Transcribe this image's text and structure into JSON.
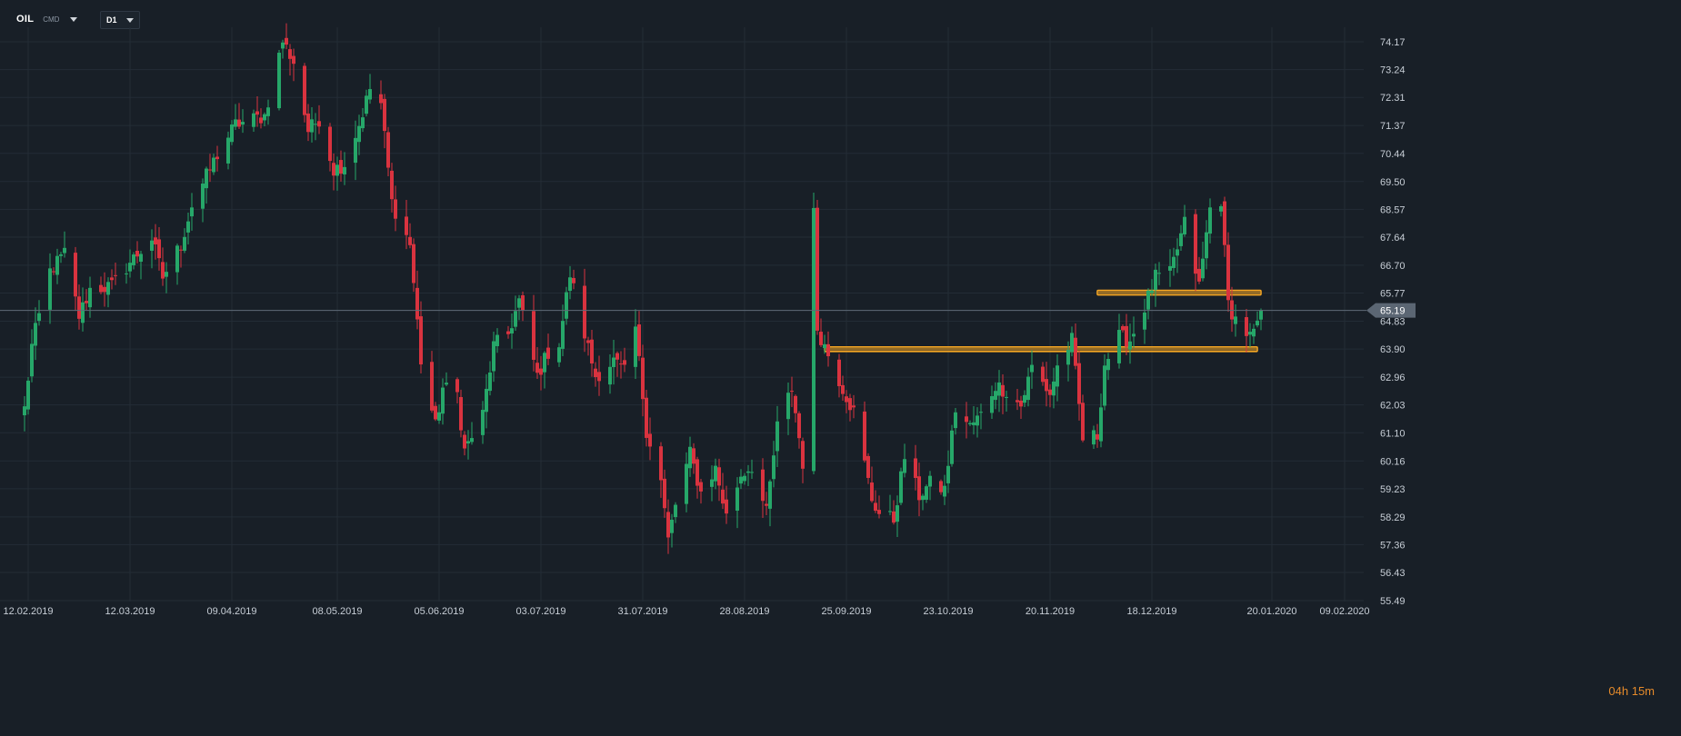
{
  "header": {
    "symbol": "OIL",
    "symbol_type": "CMD",
    "timeframe": "D1"
  },
  "countdown": "04h 15m",
  "colors": {
    "background": "#181f27",
    "grid": "#232c36",
    "bull": "#26a769",
    "bear": "#d9333f",
    "level": "#f5a623",
    "price_line": "#5f6b78",
    "price_tag": "#5b6673",
    "axis_text": "#c7ced6"
  },
  "chart_data": {
    "type": "candlestick",
    "title": "",
    "xlabel": "",
    "ylabel": "",
    "ylim": [
      55.2,
      75.0
    ],
    "grid": true,
    "y_ticks": [
      74.17,
      73.24,
      72.31,
      71.37,
      70.44,
      69.5,
      68.57,
      67.64,
      66.7,
      65.77,
      64.83,
      63.9,
      62.96,
      62.03,
      61.1,
      60.16,
      59.23,
      58.29,
      57.36,
      56.43,
      55.49
    ],
    "x_ticks": [
      "12.02.2019",
      "12.03.2019",
      "09.04.2019",
      "08.05.2019",
      "05.06.2019",
      "03.07.2019",
      "31.07.2019",
      "28.08.2019",
      "25.09.2019",
      "23.10.2019",
      "20.11.2019",
      "18.12.2019",
      "20.01.2020",
      "09.02.2020"
    ],
    "current_price": "65.19",
    "horizontal_levels": [
      {
        "price": 65.77,
        "start": "2019-12-03",
        "end": "2020-01-17"
      },
      {
        "price": 63.88,
        "start": "2019-09-19",
        "end": "2020-01-16"
      }
    ],
    "anchors": [
      [
        "2019-02-11",
        61.9
      ],
      [
        "2019-02-13",
        64.0
      ],
      [
        "2019-02-18",
        66.5
      ],
      [
        "2019-02-22",
        67.1
      ],
      [
        "2019-02-26",
        65.0
      ],
      [
        "2019-03-01",
        65.9
      ],
      [
        "2019-03-07",
        66.0
      ],
      [
        "2019-03-12",
        66.8
      ],
      [
        "2019-03-18",
        67.6
      ],
      [
        "2019-03-21",
        66.3
      ],
      [
        "2019-03-26",
        67.4
      ],
      [
        "2019-03-29",
        68.7
      ],
      [
        "2019-04-05",
        70.4
      ],
      [
        "2019-04-10",
        71.4
      ],
      [
        "2019-04-18",
        71.7
      ],
      [
        "2019-04-23",
        74.2
      ],
      [
        "2019-04-26",
        73.5
      ],
      [
        "2019-04-30",
        71.2
      ],
      [
        "2019-05-03",
        71.6
      ],
      [
        "2019-05-07",
        69.9
      ],
      [
        "2019-05-10",
        70.1
      ],
      [
        "2019-05-14",
        71.4
      ],
      [
        "2019-05-17",
        72.6
      ],
      [
        "2019-05-20",
        72.1
      ],
      [
        "2019-05-23",
        68.8
      ],
      [
        "2019-05-28",
        67.4
      ],
      [
        "2019-05-31",
        63.5
      ],
      [
        "2019-06-04",
        61.3
      ],
      [
        "2019-06-06",
        62.6
      ],
      [
        "2019-06-10",
        62.4
      ],
      [
        "2019-06-12",
        60.5
      ],
      [
        "2019-06-17",
        61.7
      ],
      [
        "2019-06-20",
        64.0
      ],
      [
        "2019-06-24",
        64.4
      ],
      [
        "2019-06-27",
        65.5
      ],
      [
        "2019-07-02",
        63.0
      ],
      [
        "2019-07-05",
        63.8
      ],
      [
        "2019-07-08",
        64.1
      ],
      [
        "2019-07-11",
        66.4
      ],
      [
        "2019-07-15",
        64.4
      ],
      [
        "2019-07-18",
        63.0
      ],
      [
        "2019-07-23",
        63.5
      ],
      [
        "2019-07-26",
        63.1
      ],
      [
        "2019-07-29",
        64.6
      ],
      [
        "2019-08-01",
        61.2
      ],
      [
        "2019-08-05",
        59.5
      ],
      [
        "2019-08-07",
        57.5
      ],
      [
        "2019-08-09",
        58.7
      ],
      [
        "2019-08-13",
        60.4
      ],
      [
        "2019-08-16",
        59.1
      ],
      [
        "2019-08-20",
        59.9
      ],
      [
        "2019-08-23",
        58.3
      ],
      [
        "2019-08-27",
        59.7
      ],
      [
        "2019-08-30",
        60.0
      ],
      [
        "2019-09-03",
        58.4
      ],
      [
        "2019-09-06",
        61.3
      ],
      [
        "2019-09-10",
        62.6
      ],
      [
        "2019-09-13",
        60.1
      ],
      [
        "2019-09-16",
        68.4
      ],
      [
        "2019-09-17",
        64.6
      ],
      [
        "2019-09-19",
        64.0
      ],
      [
        "2019-09-24",
        62.6
      ],
      [
        "2019-09-27",
        61.8
      ],
      [
        "2019-10-02",
        58.9
      ],
      [
        "2019-10-04",
        58.4
      ],
      [
        "2019-10-08",
        58.2
      ],
      [
        "2019-10-11",
        60.3
      ],
      [
        "2019-10-15",
        59.0
      ],
      [
        "2019-10-18",
        59.4
      ],
      [
        "2019-10-22",
        59.2
      ],
      [
        "2019-10-25",
        61.9
      ],
      [
        "2019-10-29",
        61.3
      ],
      [
        "2019-11-01",
        61.7
      ],
      [
        "2019-11-05",
        62.7
      ],
      [
        "2019-11-08",
        62.5
      ],
      [
        "2019-11-12",
        62.0
      ],
      [
        "2019-11-15",
        63.3
      ],
      [
        "2019-11-20",
        62.4
      ],
      [
        "2019-11-22",
        63.3
      ],
      [
        "2019-11-26",
        64.2
      ],
      [
        "2019-11-29",
        60.9
      ],
      [
        "2019-12-03",
        61.0
      ],
      [
        "2019-12-05",
        63.4
      ],
      [
        "2019-12-09",
        64.3
      ],
      [
        "2019-12-12",
        64.2
      ],
      [
        "2019-12-16",
        65.3
      ],
      [
        "2019-12-19",
        66.3
      ],
      [
        "2019-12-23",
        66.4
      ],
      [
        "2019-12-27",
        68.1
      ],
      [
        "2019-12-31",
        66.0
      ],
      [
        "2020-01-03",
        68.6
      ],
      [
        "2020-01-06",
        68.9
      ],
      [
        "2020-01-08",
        65.4
      ],
      [
        "2020-01-10",
        64.9
      ],
      [
        "2020-01-14",
        64.3
      ],
      [
        "2020-01-16",
        64.6
      ],
      [
        "2020-01-17",
        65.2
      ]
    ]
  }
}
